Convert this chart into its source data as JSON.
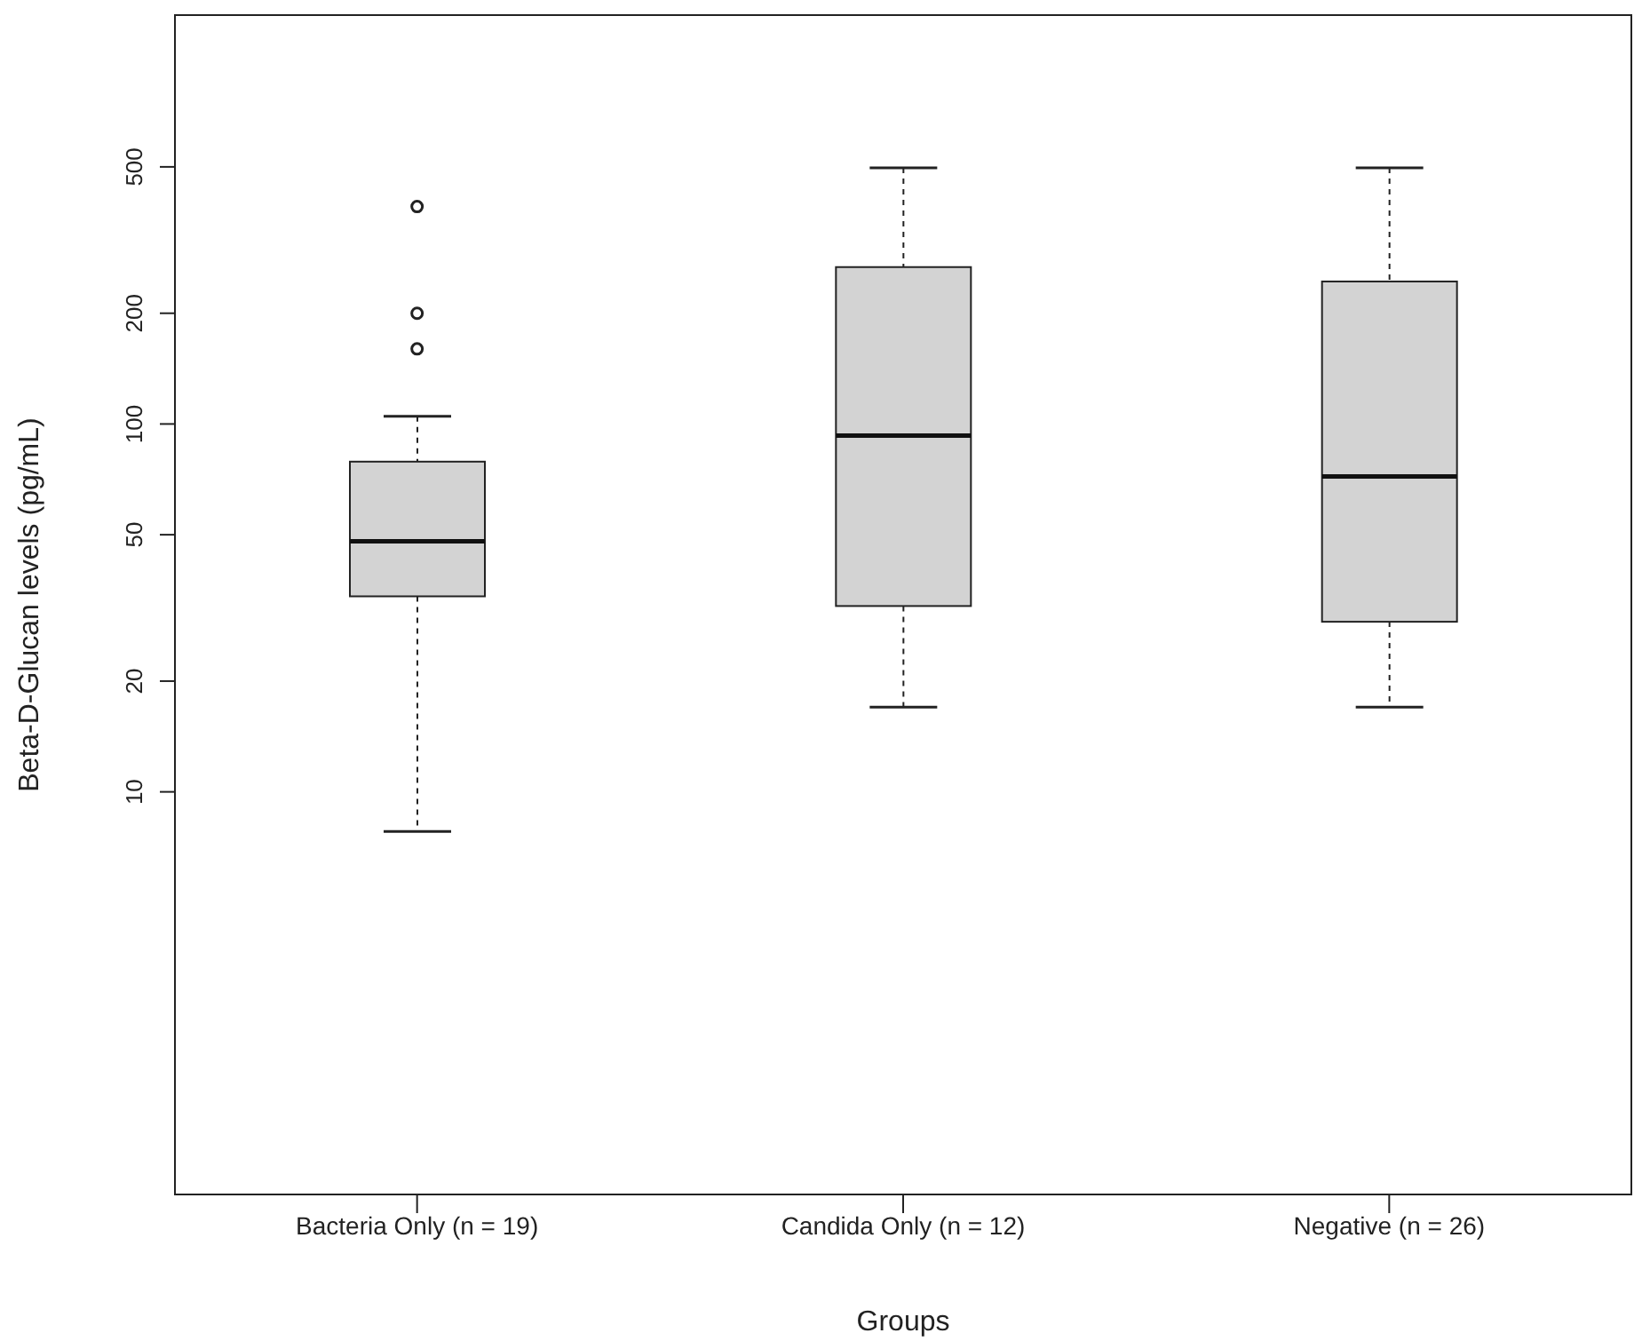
{
  "chart_data": {
    "type": "box",
    "xlabel": "Groups",
    "ylabel": "Beta-D-Glucan levels (pg/mL)",
    "categories": [
      "Bacteria Only (n = 19)",
      "Candida Only (n = 12)",
      "Negative (n = 26)"
    ],
    "color": "#d3d3d3",
    "log": true,
    "ylim": [
      0.8,
      1300
    ],
    "yticks": [
      10,
      20,
      50,
      100,
      200,
      500
    ],
    "boxes": [
      {
        "low": 7.8,
        "q1": 34,
        "median": 48,
        "q3": 79,
        "high": 105,
        "outliers": [
          160,
          200,
          390
        ]
      },
      {
        "low": 17,
        "q1": 32,
        "median": 93,
        "q3": 267,
        "high": 497
      },
      {
        "low": 17,
        "q1": 29,
        "median": 72,
        "q3": 244,
        "high": 497
      }
    ]
  }
}
